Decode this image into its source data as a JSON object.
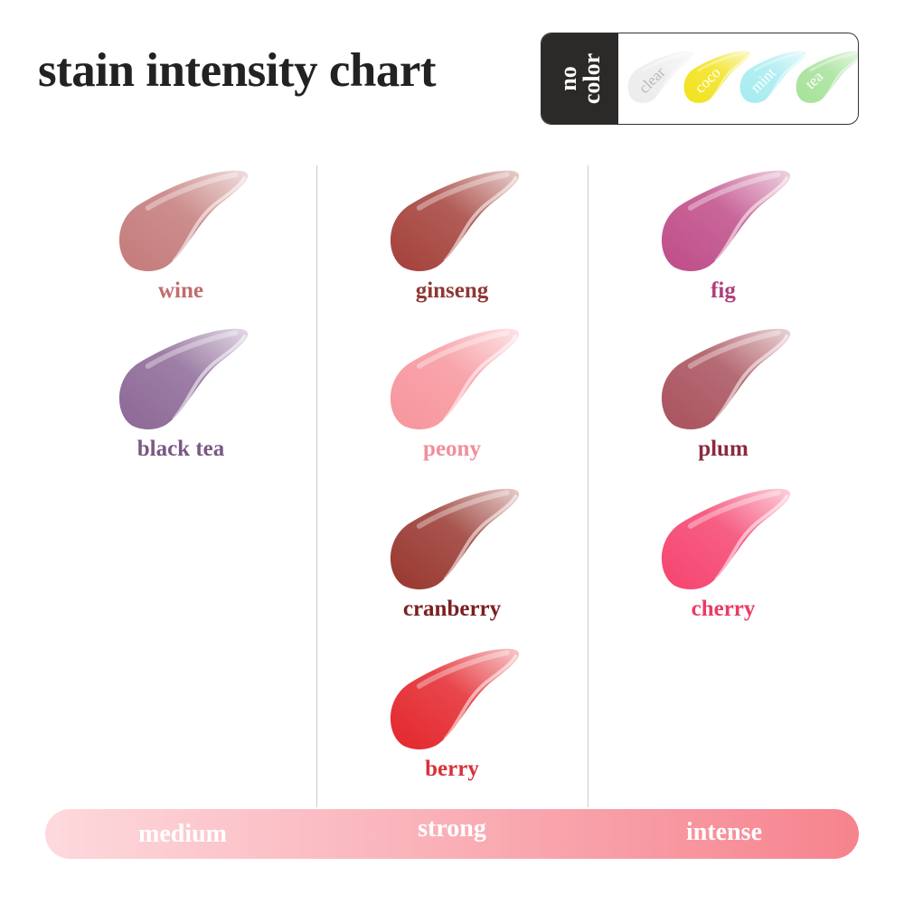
{
  "title": "stain intensity chart",
  "no_color": {
    "label": "no\ncolor",
    "items": [
      {
        "name": "clear",
        "color": "#ececec",
        "text_color": "#b8b8b8"
      },
      {
        "name": "coco",
        "color": "#f2e21c",
        "text_color": "#ffffff"
      },
      {
        "name": "mint",
        "color": "#a6ecf0",
        "text_color": "#ffffff"
      },
      {
        "name": "tea",
        "color": "#a6e29a",
        "text_color": "#ffffff"
      }
    ]
  },
  "columns": [
    {
      "level": "medium",
      "shades": [
        {
          "name": "wine",
          "color": "#c47a7a",
          "label_color": "#c06e6c"
        },
        {
          "name": "black tea",
          "color": "#8c6896",
          "label_color": "#7a5884"
        }
      ]
    },
    {
      "level": "strong",
      "shades": [
        {
          "name": "ginseng",
          "color": "#a4403a",
          "label_color": "#8e3834"
        },
        {
          "name": "peony",
          "color": "#f7959c",
          "label_color": "#f28e99"
        },
        {
          "name": "cranberry",
          "color": "#98372f",
          "label_color": "#7a1f1f"
        },
        {
          "name": "berry",
          "color": "#e3262c",
          "label_color": "#d8323a"
        }
      ]
    },
    {
      "level": "intense",
      "shades": [
        {
          "name": "fig",
          "color": "#bf4c88",
          "label_color": "#b0407a"
        },
        {
          "name": "plum",
          "color": "#a9515c",
          "label_color": "#8a2a40"
        },
        {
          "name": "cherry",
          "color": "#f5436f",
          "label_color": "#ea3a66"
        }
      ]
    }
  ],
  "scale": {
    "medium": "medium",
    "strong": "strong",
    "intense": "intense"
  }
}
